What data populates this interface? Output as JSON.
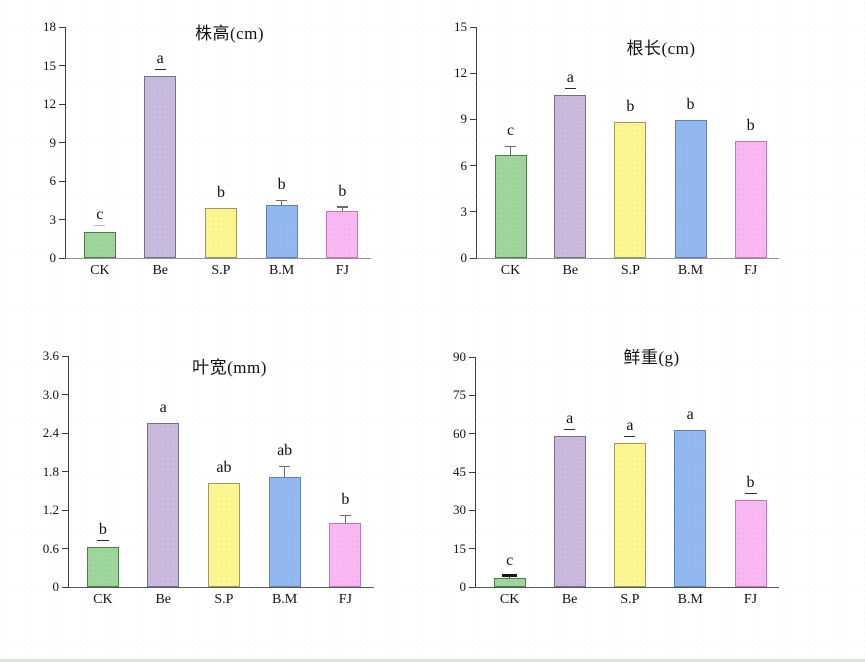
{
  "page": {
    "background": "#ffffff",
    "bottom_strip_color": "#d9e7da"
  },
  "palette": [
    {
      "category": "CK",
      "fill": "#9fd69b",
      "border": "#4e7d4e"
    },
    {
      "category": "Be",
      "fill": "#c9b9dc",
      "border": "#77708a"
    },
    {
      "category": "S.P",
      "fill": "#fbf68f",
      "border": "#9a9a60"
    },
    {
      "category": "B.M",
      "fill": "#92b8f0",
      "border": "#6080b8"
    },
    {
      "category": "FJ",
      "fill": "#f9b8f3",
      "border": "#bd77ba"
    }
  ],
  "chart_data": [
    {
      "type": "bar",
      "title": "株高(cm)",
      "xlabel": "",
      "ylabel": "",
      "ylim": [
        0,
        18
      ],
      "ytick_labels": [
        "0",
        "3",
        "6",
        "9",
        "12",
        "15",
        "18"
      ],
      "grid": false,
      "legend": "none",
      "categories": [
        "CK",
        "Be",
        "S.P",
        "B.M",
        "FJ"
      ],
      "bars": [
        {
          "category": "CK",
          "value": 2.0,
          "error": 0,
          "letter": "c",
          "underline": "light"
        },
        {
          "category": "Be",
          "value": 14.2,
          "error": 0,
          "letter": "a",
          "underline": "dark"
        },
        {
          "category": "S.P",
          "value": 3.9,
          "error": 0,
          "letter": "b",
          "underline": "none"
        },
        {
          "category": "B.M",
          "value": 4.1,
          "error": 0.4,
          "letter": "b",
          "underline": "none"
        },
        {
          "category": "FJ",
          "value": 3.65,
          "error": 0.35,
          "letter": "b",
          "underline": "none"
        }
      ]
    },
    {
      "type": "bar",
      "title": "根长(cm)",
      "xlabel": "",
      "ylabel": "",
      "ylim": [
        0,
        15
      ],
      "ytick_labels": [
        "0",
        "3",
        "6",
        "9",
        "12",
        "15"
      ],
      "grid": false,
      "legend": "none",
      "categories": [
        "CK",
        "Be",
        "S.P",
        "B.M",
        "FJ"
      ],
      "bars": [
        {
          "category": "CK",
          "value": 6.7,
          "error": 0.55,
          "letter": "c",
          "underline": "none"
        },
        {
          "category": "Be",
          "value": 10.6,
          "error": 0,
          "letter": "a",
          "underline": "dark"
        },
        {
          "category": "S.P",
          "value": 8.85,
          "error": 0,
          "letter": "b",
          "underline": "none"
        },
        {
          "category": "B.M",
          "value": 8.95,
          "error": 0,
          "letter": "b",
          "underline": "none"
        },
        {
          "category": "FJ",
          "value": 7.6,
          "error": 0,
          "letter": "b",
          "underline": "none"
        }
      ]
    },
    {
      "type": "bar",
      "title": "叶宽(mm)",
      "xlabel": "",
      "ylabel": "",
      "ylim": [
        0,
        3.6
      ],
      "ytick_labels": [
        "0",
        "0.6",
        "1.2",
        "1.8",
        "2.4",
        "3.0",
        "3.6"
      ],
      "grid": false,
      "legend": "none",
      "categories": [
        "CK",
        "Be",
        "S.P",
        "B.M",
        "FJ"
      ],
      "bars": [
        {
          "category": "CK",
          "value": 0.62,
          "error": 0,
          "letter": "b",
          "underline": "dark"
        },
        {
          "category": "Be",
          "value": 2.55,
          "error": 0,
          "letter": "a",
          "underline": "none"
        },
        {
          "category": "S.P",
          "value": 1.62,
          "error": 0,
          "letter": "ab",
          "underline": "none"
        },
        {
          "category": "B.M",
          "value": 1.72,
          "error": 0.16,
          "letter": "ab",
          "underline": "none"
        },
        {
          "category": "FJ",
          "value": 1.0,
          "error": 0.12,
          "letter": "b",
          "underline": "none"
        }
      ]
    },
    {
      "type": "bar",
      "title": "鲜重(g)",
      "xlabel": "",
      "ylabel": "",
      "ylim": [
        0,
        90
      ],
      "ytick_labels": [
        "0",
        "15",
        "30",
        "45",
        "60",
        "75",
        "90"
      ],
      "grid": false,
      "legend": "none",
      "categories": [
        "CK",
        "Be",
        "S.P",
        "B.M",
        "FJ"
      ],
      "bars": [
        {
          "category": "CK",
          "value": 3.6,
          "error": 0.8,
          "error_thick": true,
          "letter": "c",
          "underline": "none"
        },
        {
          "category": "Be",
          "value": 59,
          "error": 0,
          "letter": "a",
          "underline": "dark"
        },
        {
          "category": "S.P",
          "value": 56.5,
          "error": 0,
          "letter": "a",
          "underline": "dark"
        },
        {
          "category": "B.M",
          "value": 61.5,
          "error": 0,
          "letter": "a",
          "underline": "none"
        },
        {
          "category": "FJ",
          "value": 34,
          "error": 0,
          "letter": "b",
          "underline": "dark"
        }
      ]
    }
  ]
}
